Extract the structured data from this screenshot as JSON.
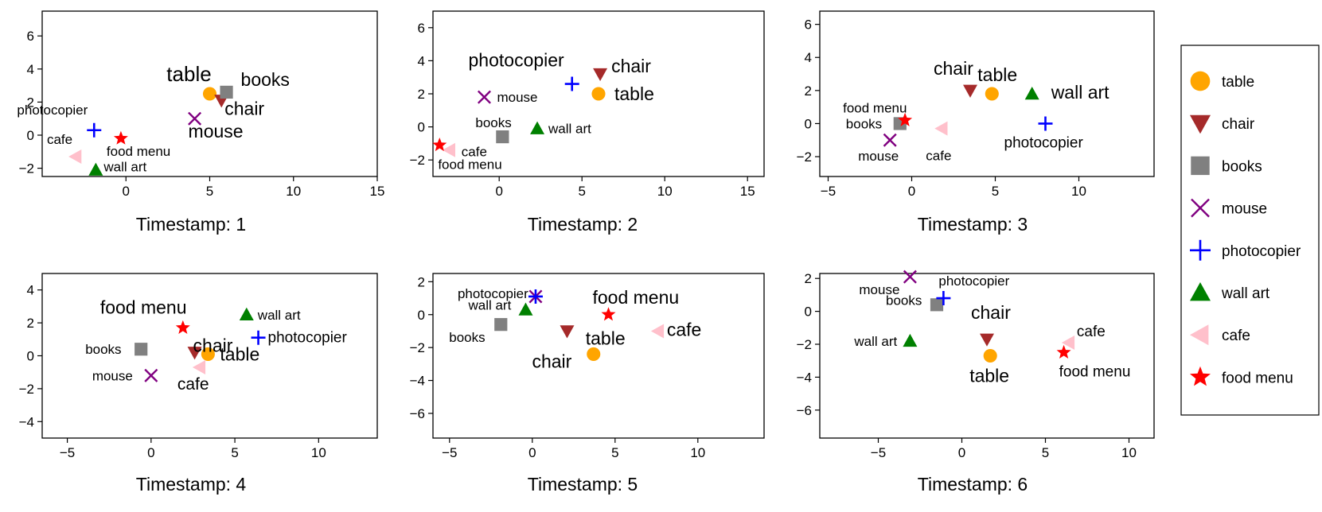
{
  "chart_data": [
    {
      "type": "scatter",
      "title": "Timestamp: 1",
      "xlim": [
        -5,
        15
      ],
      "ylim": [
        -2.5,
        7.5
      ],
      "xticks": [
        0,
        5,
        10,
        15
      ],
      "yticks": [
        -2,
        0,
        2,
        4,
        6
      ],
      "points": [
        {
          "name": "table",
          "x": 5.0,
          "y": 2.5,
          "label": "table"
        },
        {
          "name": "chair",
          "x": 5.7,
          "y": 2.1,
          "label": "chair"
        },
        {
          "name": "books",
          "x": 6.0,
          "y": 2.6,
          "label": "books"
        },
        {
          "name": "mouse",
          "x": 4.1,
          "y": 1.0,
          "label": "mouse"
        },
        {
          "name": "photocopier",
          "x": -1.9,
          "y": 0.3,
          "label": "photocopier"
        },
        {
          "name": "wall art",
          "x": -1.8,
          "y": -2.1,
          "label": "wall  art"
        },
        {
          "name": "cafe",
          "x": -3.0,
          "y": -1.3,
          "label": "cafe"
        },
        {
          "name": "food menu",
          "x": -0.3,
          "y": -0.2,
          "label": "food menu"
        }
      ]
    },
    {
      "type": "scatter",
      "title": "Timestamp: 2",
      "xlim": [
        -4,
        16
      ],
      "ylim": [
        -3,
        7
      ],
      "xticks": [
        0,
        5,
        10,
        15
      ],
      "yticks": [
        -2,
        0,
        2,
        4,
        6
      ],
      "points": [
        {
          "name": "table",
          "x": 6.0,
          "y": 2.0,
          "label": "table"
        },
        {
          "name": "chair",
          "x": 6.1,
          "y": 3.2,
          "label": "chair"
        },
        {
          "name": "books",
          "x": 0.2,
          "y": -0.6,
          "label": "books"
        },
        {
          "name": "mouse",
          "x": -0.9,
          "y": 1.8,
          "label": "mouse"
        },
        {
          "name": "photocopier",
          "x": 4.4,
          "y": 2.6,
          "label": "photocopier"
        },
        {
          "name": "wall art",
          "x": 2.3,
          "y": -0.1,
          "label": "wall art"
        },
        {
          "name": "cafe",
          "x": -3.0,
          "y": -1.4,
          "label": "cafe"
        },
        {
          "name": "food menu",
          "x": -3.6,
          "y": -1.1,
          "label": "food menu"
        }
      ]
    },
    {
      "type": "scatter",
      "title": "Timestamp: 3",
      "xlim": [
        -5.5,
        14.5
      ],
      "ylim": [
        -3.2,
        6.8
      ],
      "xticks": [
        -5,
        0,
        5,
        10
      ],
      "yticks": [
        -2,
        0,
        2,
        4,
        6
      ],
      "points": [
        {
          "name": "table",
          "x": 4.8,
          "y": 1.8,
          "label": "table"
        },
        {
          "name": "chair",
          "x": 3.5,
          "y": 2.0,
          "label": "chair"
        },
        {
          "name": "books",
          "x": -0.7,
          "y": 0.0,
          "label": "books"
        },
        {
          "name": "mouse",
          "x": -1.3,
          "y": -1.0,
          "label": "mouse"
        },
        {
          "name": "photocopier",
          "x": 8.0,
          "y": 0.0,
          "label": "photocopier"
        },
        {
          "name": "wall art",
          "x": 7.2,
          "y": 1.8,
          "label": "wall art"
        },
        {
          "name": "cafe",
          "x": 1.8,
          "y": -0.3,
          "label": "cafe"
        },
        {
          "name": "food menu",
          "x": -0.4,
          "y": 0.2,
          "label": "food menu"
        }
      ]
    },
    {
      "type": "scatter",
      "title": "Timestamp: 4",
      "xlim": [
        -6.5,
        13.5
      ],
      "ylim": [
        -5,
        5
      ],
      "xticks": [
        -5,
        0,
        5,
        10
      ],
      "yticks": [
        -4,
        -2,
        0,
        2,
        4
      ],
      "points": [
        {
          "name": "table",
          "x": 3.4,
          "y": 0.1,
          "label": "table"
        },
        {
          "name": "chair",
          "x": 2.6,
          "y": 0.2,
          "label": "chair"
        },
        {
          "name": "books",
          "x": -0.6,
          "y": 0.4,
          "label": "books"
        },
        {
          "name": "mouse",
          "x": 0.0,
          "y": -1.2,
          "label": "mouse"
        },
        {
          "name": "photocopier",
          "x": 6.4,
          "y": 1.1,
          "label": "photocopier"
        },
        {
          "name": "wall art",
          "x": 5.7,
          "y": 2.5,
          "label": "wall art"
        },
        {
          "name": "cafe",
          "x": 2.9,
          "y": -0.7,
          "label": "cafe"
        },
        {
          "name": "food menu",
          "x": 1.9,
          "y": 1.7,
          "label": "food menu"
        }
      ]
    },
    {
      "type": "scatter",
      "title": "Timestamp: 5",
      "xlim": [
        -6,
        14
      ],
      "ylim": [
        -7.5,
        2.5
      ],
      "xticks": [
        -5,
        0,
        5,
        10
      ],
      "yticks": [
        -6,
        -4,
        -2,
        0,
        2
      ],
      "points": [
        {
          "name": "table",
          "x": 3.7,
          "y": -2.4,
          "label": "table"
        },
        {
          "name": "chair",
          "x": 2.1,
          "y": -1.0,
          "label": "chair"
        },
        {
          "name": "books",
          "x": -1.9,
          "y": -0.6,
          "label": "books"
        },
        {
          "name": "mouse",
          "x": 0.2,
          "y": 1.1,
          "label": ""
        },
        {
          "name": "photocopier",
          "x": 0.2,
          "y": 1.1,
          "label": "photocopier"
        },
        {
          "name": "wall art",
          "x": -0.4,
          "y": 0.3,
          "label": "wall art"
        },
        {
          "name": "cafe",
          "x": 7.6,
          "y": -1.0,
          "label": "cafe"
        },
        {
          "name": "food menu",
          "x": 4.6,
          "y": 0.0,
          "label": "food menu"
        }
      ]
    },
    {
      "type": "scatter",
      "title": "Timestamp: 6",
      "xlim": [
        -8.5,
        11.5
      ],
      "ylim": [
        -7.7,
        2.3
      ],
      "xticks": [
        -5,
        0,
        5,
        10
      ],
      "yticks": [
        -6,
        -4,
        -2,
        0,
        2
      ],
      "points": [
        {
          "name": "table",
          "x": 1.7,
          "y": -2.7,
          "label": "table"
        },
        {
          "name": "chair",
          "x": 1.5,
          "y": -1.7,
          "label": "chair"
        },
        {
          "name": "books",
          "x": -1.5,
          "y": 0.4,
          "label": "books"
        },
        {
          "name": "mouse",
          "x": -3.1,
          "y": 2.1,
          "label": "mouse"
        },
        {
          "name": "photocopier",
          "x": -1.1,
          "y": 0.8,
          "label": "photocopier"
        },
        {
          "name": "wall art",
          "x": -3.1,
          "y": -1.8,
          "label": "wall art"
        },
        {
          "name": "cafe",
          "x": 6.4,
          "y": -1.9,
          "label": "cafe"
        },
        {
          "name": "food menu",
          "x": 6.1,
          "y": -2.5,
          "label": "food menu"
        }
      ]
    }
  ],
  "legend": {
    "placement": "right",
    "items": [
      {
        "name": "table",
        "label": "table",
        "marker": "circle",
        "color": "#FFA500"
      },
      {
        "name": "chair",
        "label": "chair",
        "marker": "triangle-down",
        "color": "#A52A2A"
      },
      {
        "name": "books",
        "label": "books",
        "marker": "square",
        "color": "#808080"
      },
      {
        "name": "mouse",
        "label": "mouse",
        "marker": "x",
        "color": "#800080"
      },
      {
        "name": "photocopier",
        "label": "photocopier",
        "marker": "plus",
        "color": "#0000FF"
      },
      {
        "name": "wall art",
        "label": "wall art",
        "marker": "triangle-up",
        "color": "#008000"
      },
      {
        "name": "cafe",
        "label": "cafe",
        "marker": "triangle-left",
        "color": "#FFC0CB"
      },
      {
        "name": "food menu",
        "label": "food menu",
        "marker": "star",
        "color": "#FF0000"
      }
    ]
  }
}
